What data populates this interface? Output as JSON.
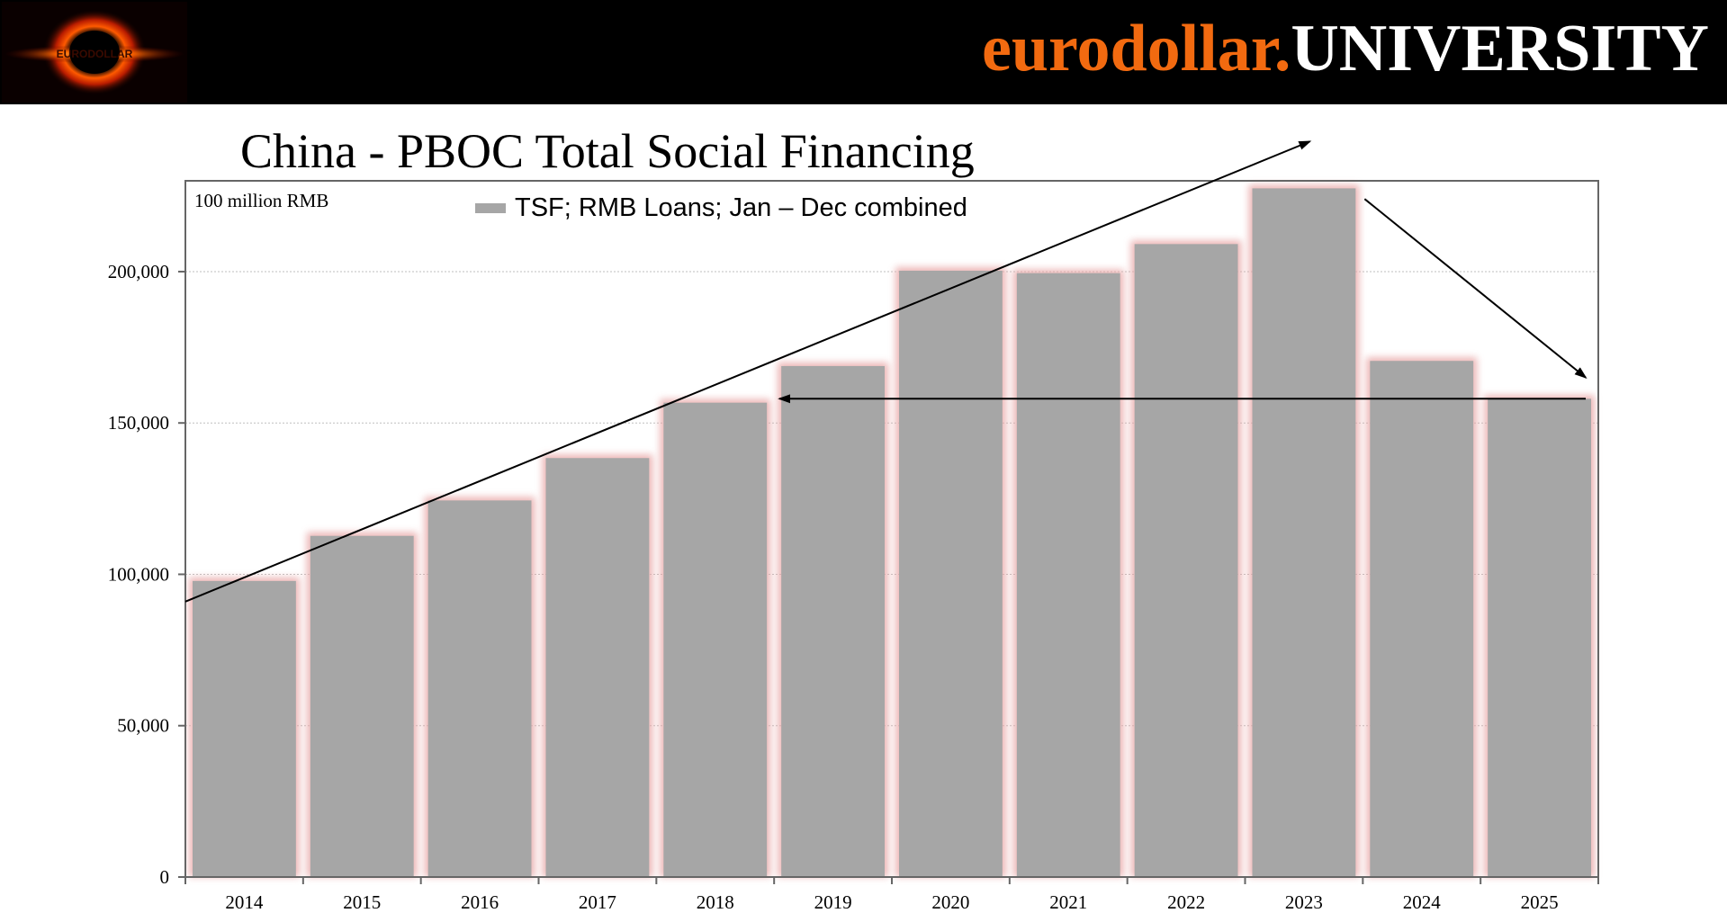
{
  "header": {
    "brand_part1": "eurodollar.",
    "brand_part2": "UNIVERSITY",
    "logo_icon": "black-hole-logo-icon",
    "logo_text": "EURODOLLAR"
  },
  "colors": {
    "header_bg": "#000000",
    "brand_orange": "#f26a10",
    "brand_white": "#ffffff",
    "bar_fill": "#a6a6a6",
    "bar_glow": "#e8a6a6"
  },
  "chart_data": {
    "type": "bar",
    "title": "China - PBOC Total Social Financing",
    "unit_label": "100 million RMB",
    "categories": [
      "2014",
      "2015",
      "2016",
      "2017",
      "2018",
      "2019",
      "2020",
      "2021",
      "2022",
      "2023",
      "2024",
      "2025"
    ],
    "series": [
      {
        "name": "TSF; RMB Loans; Jan – Dec combined",
        "values": [
          97800,
          112700,
          124400,
          138400,
          156700,
          168800,
          200300,
          199500,
          209100,
          227500,
          170500,
          158000
        ]
      }
    ],
    "ylim": [
      0,
      230000
    ],
    "yticks": [
      0,
      50000,
      100000,
      150000,
      200000
    ],
    "ytick_labels": [
      "0",
      "50,000",
      "100,000",
      "150,000",
      "200,000"
    ],
    "grid": "horizontal",
    "legend_position": "top-center",
    "annotations": [
      {
        "type": "arrow",
        "description": "rising trend line",
        "from": [
          "2014",
          91000
        ],
        "to": [
          "2024",
          243000
        ]
      },
      {
        "type": "arrow",
        "description": "decline arrow",
        "from": [
          "2023",
          224000
        ],
        "to": [
          "2025",
          165000
        ]
      },
      {
        "type": "arrow",
        "description": "horizontal back-reference",
        "from": [
          "2025",
          158000
        ],
        "to": [
          "2019",
          158000
        ]
      }
    ]
  }
}
